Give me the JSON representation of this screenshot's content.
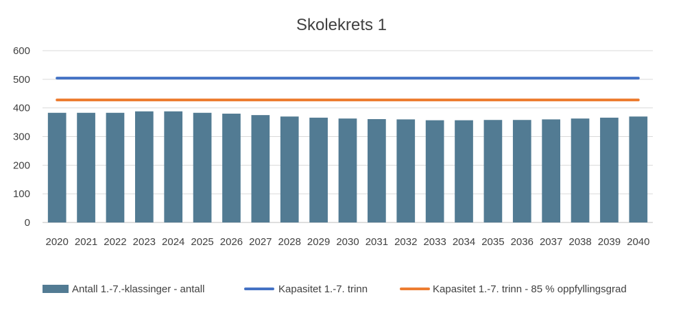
{
  "chart_data": {
    "type": "bar",
    "title": "Skolekrets 1",
    "categories": [
      "2020",
      "2021",
      "2022",
      "2023",
      "2024",
      "2025",
      "2026",
      "2027",
      "2028",
      "2029",
      "2030",
      "2031",
      "2032",
      "2033",
      "2034",
      "2035",
      "2036",
      "2037",
      "2038",
      "2039",
      "2040"
    ],
    "series": [
      {
        "name": "Antall 1.-7.-klassinger - antall",
        "kind": "bar",
        "color": "#527b93",
        "values": [
          383,
          383,
          383,
          388,
          388,
          383,
          380,
          375,
          370,
          366,
          363,
          361,
          360,
          357,
          357,
          358,
          358,
          360,
          363,
          366,
          370
        ]
      },
      {
        "name": "Kapasitet 1.-7. trinn",
        "kind": "line",
        "color": "#4472c4",
        "values": [
          504,
          504,
          504,
          504,
          504,
          504,
          504,
          504,
          504,
          504,
          504,
          504,
          504,
          504,
          504,
          504,
          504,
          504,
          504,
          504,
          504
        ]
      },
      {
        "name": "Kapasitet 1.-7. trinn - 85 % oppfyllingsgrad",
        "kind": "line",
        "color": "#ed7d31",
        "values": [
          428,
          428,
          428,
          428,
          428,
          428,
          428,
          428,
          428,
          428,
          428,
          428,
          428,
          428,
          428,
          428,
          428,
          428,
          428,
          428,
          428
        ]
      }
    ],
    "y_ticks": [
      "0",
      "100",
      "200",
      "300",
      "400",
      "500",
      "600"
    ],
    "ylim": [
      0,
      600
    ],
    "grid": true,
    "legend_position": "bottom"
  }
}
